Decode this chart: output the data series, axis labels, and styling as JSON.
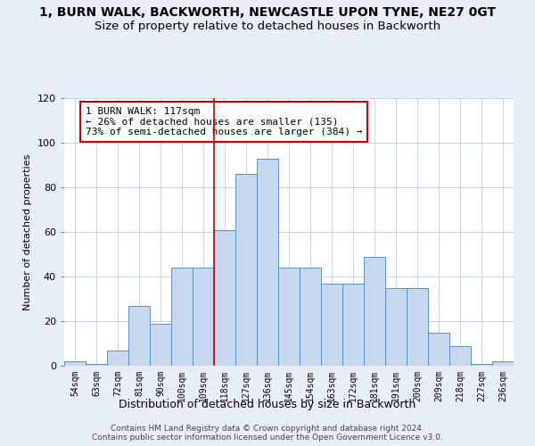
{
  "title": "1, BURN WALK, BACKWORTH, NEWCASTLE UPON TYNE, NE27 0GT",
  "subtitle": "Size of property relative to detached houses in Backworth",
  "xlabel": "Distribution of detached houses by size in Backworth",
  "ylabel": "Number of detached properties",
  "categories": [
    "54sqm",
    "63sqm",
    "72sqm",
    "81sqm",
    "90sqm",
    "100sqm",
    "109sqm",
    "118sqm",
    "127sqm",
    "136sqm",
    "145sqm",
    "154sqm",
    "163sqm",
    "172sqm",
    "181sqm",
    "191sqm",
    "200sqm",
    "209sqm",
    "218sqm",
    "227sqm",
    "236sqm"
  ],
  "values": [
    2,
    1,
    7,
    27,
    19,
    44,
    44,
    61,
    86,
    93,
    44,
    44,
    37,
    37,
    49,
    35,
    35,
    15,
    9,
    1,
    2
  ],
  "bar_color": "#c5d8ee",
  "bar_edge_color": "#5b8fc9",
  "vline_x_index": 7,
  "vline_color": "#cc0000",
  "annotation_text": "1 BURN WALK: 117sqm\n← 26% of detached houses are smaller (135)\n73% of semi-detached houses are larger (384) →",
  "annotation_box_color": "#ffffff",
  "annotation_box_edge_color": "#cc0000",
  "ylim": [
    0,
    120
  ],
  "yticks": [
    0,
    20,
    40,
    60,
    80,
    100,
    120
  ],
  "footer1": "Contains HM Land Registry data © Crown copyright and database right 2024.",
  "footer2": "Contains public sector information licensed under the Open Government Licence v3.0.",
  "bg_color": "#e8eef7",
  "plot_bg_color": "#ffffff",
  "title_fontsize": 10,
  "subtitle_fontsize": 9.5,
  "xlabel_fontsize": 9,
  "ylabel_fontsize": 8,
  "tick_fontsize": 7,
  "footer_fontsize": 6.5,
  "annot_fontsize": 8
}
